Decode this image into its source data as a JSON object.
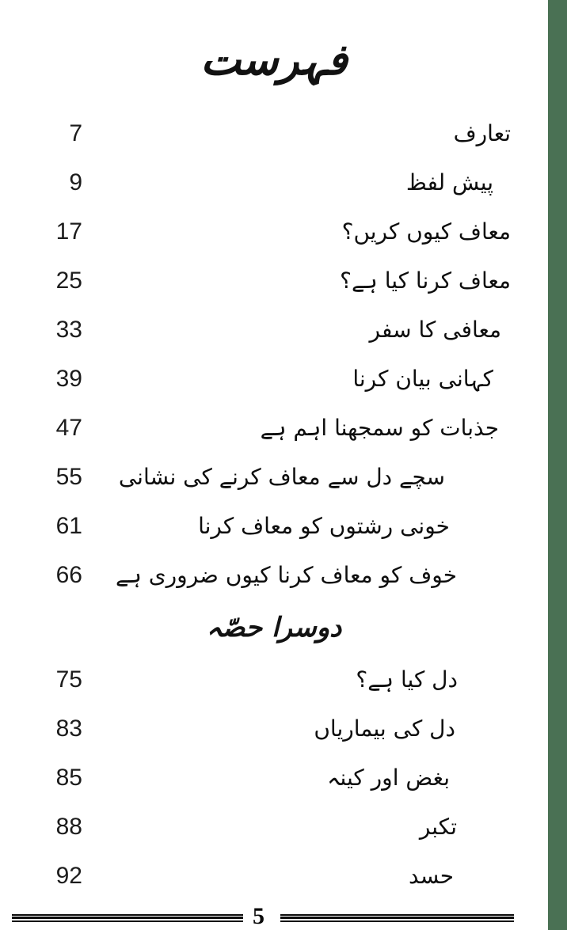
{
  "document": {
    "title": "فہرست",
    "footer_page_number": "5",
    "accent_color": "#4a7154"
  },
  "toc": {
    "part1": [
      {
        "title": "تعارف",
        "page": "7"
      },
      {
        "title": "پیش لفظ",
        "page": "9"
      },
      {
        "title": "معاف کیوں کریں؟",
        "page": "17"
      },
      {
        "title": "معاف کرنا کیا ہے؟",
        "page": "25"
      },
      {
        "title": "معافی کا سفر",
        "page": "33"
      },
      {
        "title": "کہانی بیان کرنا",
        "page": "39"
      },
      {
        "title": "جذبات کو سمجھنا اہم ہے",
        "page": "47"
      },
      {
        "title": "سچے دل سے معاف کرنے کی نشانی",
        "page": "55"
      },
      {
        "title": "خونی رشتوں کو معاف کرنا",
        "page": "61"
      },
      {
        "title": "خوف کو معاف کرنا کیوں ضروری ہے",
        "page": "66"
      }
    ],
    "section_heading": "دوسرا حصّہ",
    "part2": [
      {
        "title": "دل کیا ہے؟",
        "page": "75"
      },
      {
        "title": "دل کی بیماریاں",
        "page": "83"
      },
      {
        "title": "بغض اور کینہ",
        "page": "85"
      },
      {
        "title": "تکبر",
        "page": "88"
      },
      {
        "title": "حسد",
        "page": "92"
      }
    ]
  }
}
